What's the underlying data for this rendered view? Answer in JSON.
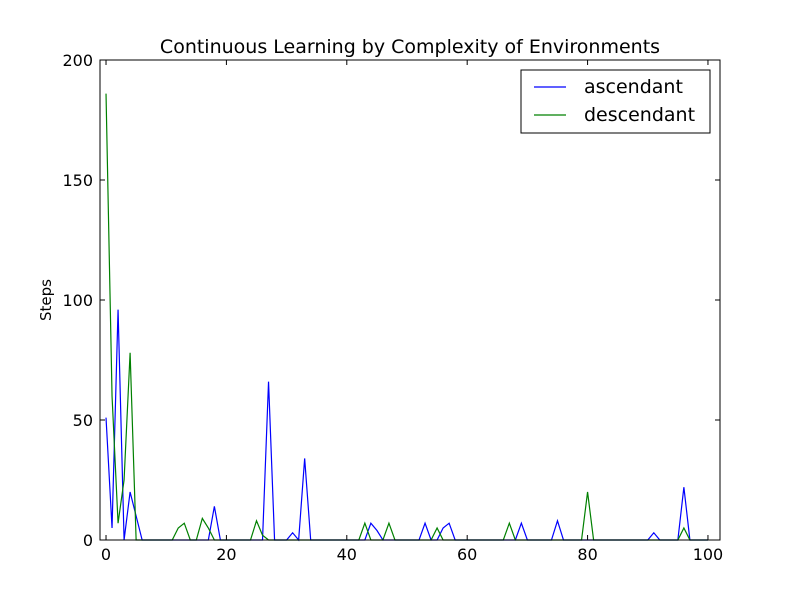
{
  "chart_data": {
    "type": "line",
    "title": "Continuous Learning by Complexity of Environments",
    "xlabel": "",
    "ylabel": "Steps",
    "xlim": [
      -1,
      102
    ],
    "ylim": [
      0,
      200
    ],
    "xticks": [
      0,
      20,
      40,
      60,
      80,
      100
    ],
    "yticks": [
      0,
      50,
      100,
      150,
      200
    ],
    "grid": false,
    "legend": {
      "position": "top-right"
    },
    "series": [
      {
        "name": "ascendant",
        "color": "#0000ff",
        "points": [
          [
            0,
            51
          ],
          [
            1,
            5
          ],
          [
            2,
            96
          ],
          [
            3,
            0
          ],
          [
            4,
            20
          ],
          [
            5,
            10
          ],
          [
            6,
            0
          ],
          [
            17,
            0
          ],
          [
            18,
            14
          ],
          [
            19,
            0
          ],
          [
            26,
            0
          ],
          [
            27,
            66
          ],
          [
            28,
            0
          ],
          [
            30,
            0
          ],
          [
            31,
            3
          ],
          [
            32,
            0
          ],
          [
            33,
            34
          ],
          [
            34,
            0
          ],
          [
            43,
            0
          ],
          [
            44,
            7
          ],
          [
            45,
            4
          ],
          [
            46,
            0
          ],
          [
            52,
            0
          ],
          [
            53,
            7
          ],
          [
            54,
            0
          ],
          [
            55,
            0
          ],
          [
            56,
            5
          ],
          [
            57,
            7
          ],
          [
            58,
            0
          ],
          [
            68,
            0
          ],
          [
            69,
            7
          ],
          [
            70,
            0
          ],
          [
            74,
            0
          ],
          [
            75,
            8
          ],
          [
            76,
            0
          ],
          [
            90,
            0
          ],
          [
            91,
            3
          ],
          [
            92,
            0
          ],
          [
            95,
            0
          ],
          [
            96,
            22
          ],
          [
            97,
            0
          ],
          [
            100,
            0
          ]
        ]
      },
      {
        "name": "descendant",
        "color": "#008000",
        "points": [
          [
            0,
            186
          ],
          [
            1,
            60
          ],
          [
            2,
            7
          ],
          [
            3,
            25
          ],
          [
            4,
            78
          ],
          [
            5,
            0
          ],
          [
            11,
            0
          ],
          [
            12,
            5
          ],
          [
            13,
            7
          ],
          [
            14,
            0
          ],
          [
            15,
            0
          ],
          [
            16,
            9
          ],
          [
            17,
            5
          ],
          [
            18,
            0
          ],
          [
            24,
            0
          ],
          [
            25,
            8
          ],
          [
            26,
            2
          ],
          [
            27,
            0
          ],
          [
            42,
            0
          ],
          [
            43,
            7
          ],
          [
            44,
            0
          ],
          [
            46,
            0
          ],
          [
            47,
            7
          ],
          [
            48,
            0
          ],
          [
            54,
            0
          ],
          [
            55,
            5
          ],
          [
            56,
            0
          ],
          [
            66,
            0
          ],
          [
            67,
            7
          ],
          [
            68,
            0
          ],
          [
            79,
            0
          ],
          [
            80,
            20
          ],
          [
            81,
            0
          ],
          [
            95,
            0
          ],
          [
            96,
            5
          ],
          [
            97,
            0
          ],
          [
            100,
            0
          ]
        ]
      }
    ]
  }
}
